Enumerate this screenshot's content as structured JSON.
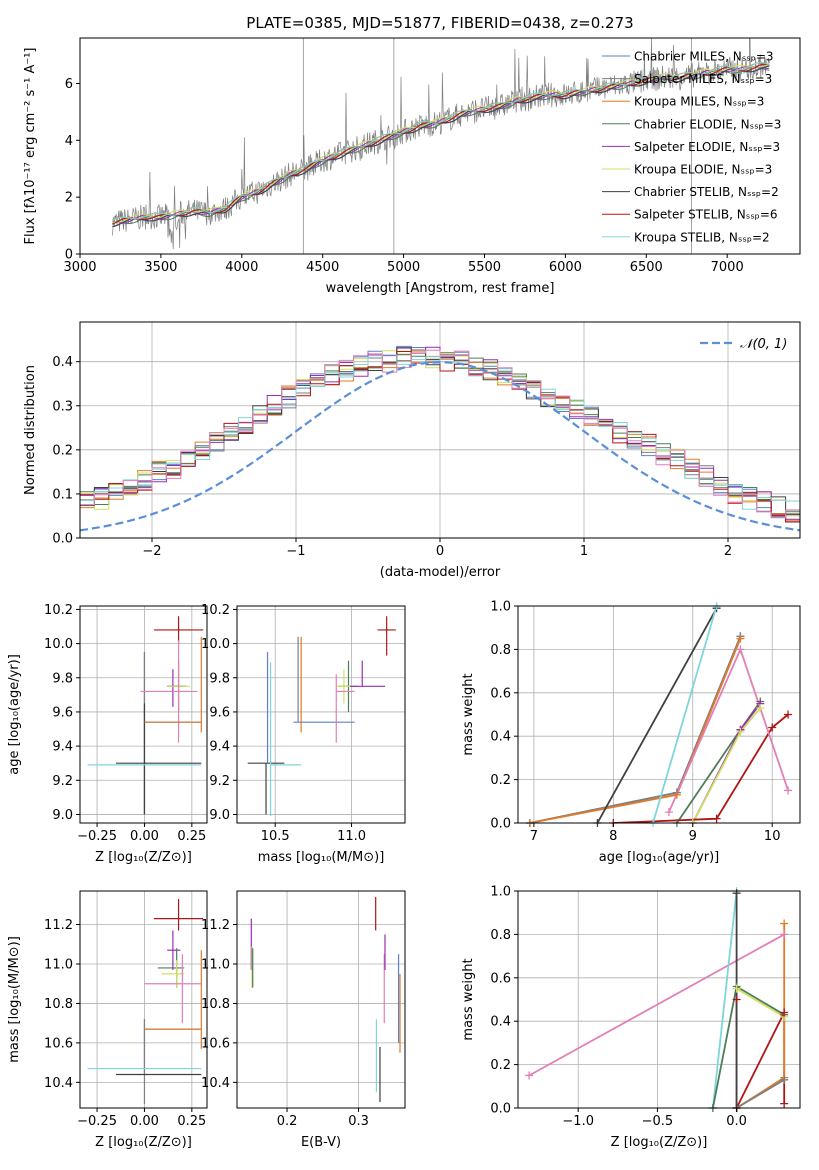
{
  "figure_title": "PLATE=0385, MJD=51877, FIBERID=0438, z=0.273",
  "colors": {
    "cm": "#5b82c9",
    "sm": "#7f7f7f",
    "km": "#e07b2a",
    "ce": "#4e7d5a",
    "se": "#9a2fb5",
    "ke": "#cfe060",
    "cs": "#404040",
    "ss": "#b01515",
    "ks": "#7ed6da",
    "normal": "#5b8fd6",
    "pink": "#e37fb7"
  },
  "chart_data": [
    {
      "id": "spectrum",
      "type": "line",
      "title": "PLATE=0385, MJD=51877, FIBERID=0438, z=0.273",
      "xlabel": "wavelength [Angstrom, rest frame]",
      "ylabel": "Flux [fλ10⁻¹⁷ erg cm⁻² s⁻¹ A⁻¹]",
      "xlim": [
        3000,
        7450
      ],
      "ylim": [
        0,
        7.6
      ],
      "xticks": [
        "3000",
        "3500",
        "4000",
        "4500",
        "5000",
        "5500",
        "6000",
        "6500",
        "7000"
      ],
      "yticks": [
        "0",
        "2",
        "4",
        "6"
      ],
      "legend_position": "top-right",
      "continuum_x": [
        3200,
        3300,
        3400,
        3500,
        3600,
        3700,
        3800,
        3900,
        4000,
        4100,
        4200,
        4300,
        4400,
        4500,
        4600,
        4700,
        4800,
        4900,
        5000,
        5100,
        5200,
        5300,
        5400,
        5500,
        5600,
        5700,
        5800,
        5900,
        6000,
        6100,
        6200,
        6300,
        6400,
        6500,
        6600,
        6700,
        6800,
        6900,
        7000,
        7100,
        7200
      ],
      "continuum_y": [
        1.1,
        1.2,
        1.3,
        1.3,
        1.4,
        1.5,
        1.45,
        1.6,
        2.0,
        2.2,
        2.5,
        2.8,
        3.0,
        3.3,
        3.5,
        3.7,
        3.9,
        4.1,
        4.3,
        4.5,
        4.6,
        4.8,
        5.0,
        5.1,
        5.2,
        5.4,
        5.5,
        5.6,
        5.6,
        5.7,
        5.8,
        5.9,
        6.0,
        6.1,
        6.2,
        6.2,
        6.3,
        6.4,
        6.5,
        6.5,
        6.6
      ],
      "series": [
        {
          "name": "Chabrier MILES, Nₛₛₚ=3",
          "color_key": "cm"
        },
        {
          "name": "Salpeter MILES, Nₛₛₚ=3",
          "color_key": "sm"
        },
        {
          "name": "Kroupa MILES, Nₛₛₚ=3",
          "color_key": "km"
        },
        {
          "name": "Chabrier ELODIE, Nₛₛₚ=3",
          "color_key": "ce"
        },
        {
          "name": "Salpeter ELODIE, Nₛₛₚ=3",
          "color_key": "se"
        },
        {
          "name": "Kroupa ELODIE, Nₛₛₚ=3",
          "color_key": "ke"
        },
        {
          "name": "Chabrier STELIB, Nₛₛₚ=2",
          "color_key": "cs"
        },
        {
          "name": "Salpeter STELIB, Nₛₛₚ=6",
          "color_key": "ss"
        },
        {
          "name": "Kroupa STELIB, Nₛₛₚ=2",
          "color_key": "ks"
        }
      ]
    },
    {
      "id": "residuals",
      "type": "histogram",
      "xlabel": "(data-model)/error",
      "ylabel": "Normed distribution",
      "xlim": [
        -2.5,
        2.5
      ],
      "ylim": [
        0,
        0.49
      ],
      "xticks": [
        "−2",
        "−1",
        "0",
        "1",
        "2"
      ],
      "yticks": [
        "0.0",
        "0.1",
        "0.2",
        "0.3",
        "0.4"
      ],
      "grid": true,
      "legend_position": "top-right",
      "normal_label": "𝒩(0, 1)",
      "bin_width": 0.1,
      "base_heights": [
        0.03,
        0.04,
        0.05,
        0.06,
        0.07,
        0.08,
        0.09,
        0.1,
        0.11,
        0.13,
        0.15,
        0.16,
        0.18,
        0.2,
        0.22,
        0.24,
        0.26,
        0.28,
        0.3,
        0.32,
        0.34,
        0.36,
        0.37,
        0.38,
        0.39,
        0.4,
        0.4,
        0.41,
        0.42,
        0.41,
        0.4,
        0.4,
        0.39,
        0.38,
        0.37,
        0.36,
        0.34,
        0.32,
        0.3,
        0.29,
        0.28,
        0.26,
        0.24,
        0.22,
        0.21,
        0.19,
        0.18,
        0.16,
        0.14,
        0.12,
        0.1,
        0.09,
        0.08,
        0.07,
        0.06,
        0.05,
        0.04,
        0.04,
        0.03,
        0.03
      ]
    },
    {
      "id": "age_vs_Z",
      "type": "errorbar",
      "xlabel": "Z [log₁₀(Z/Z⊙)]",
      "ylabel": "age  [log₁₀(age/yr)]",
      "xlim": [
        -0.34,
        0.33
      ],
      "ylim": [
        8.95,
        10.22
      ],
      "xticks": [
        "−0.25",
        "0.00",
        "0.25"
      ],
      "yticks": [
        "9.0",
        "9.2",
        "9.4",
        "9.6",
        "9.8",
        "10.0",
        "10.2"
      ],
      "grid": true,
      "points": [
        {
          "c": "cm",
          "x": 0.0,
          "xerr": [
            0.0,
            0.0
          ],
          "y": 9.3,
          "yerr": [
            0.3,
            0.65
          ]
        },
        {
          "c": "sm",
          "x": 0.0,
          "xerr": [
            0.0,
            0.0
          ],
          "y": 9.3,
          "yerr": [
            0.3,
            0.65
          ]
        },
        {
          "c": "km",
          "x": 0.3,
          "xerr": [
            0.0,
            0.0
          ],
          "y": 9.54,
          "yerr": [
            0.06,
            0.5
          ]
        },
        {
          "c": "ce",
          "x": 0.18,
          "xerr": [
            0.04,
            0.04
          ],
          "y": 9.75,
          "yerr": [
            0.15,
            0.15
          ]
        },
        {
          "c": "se",
          "x": 0.15,
          "xerr": [
            0.03,
            0.04
          ],
          "y": 9.75,
          "yerr": [
            0.12,
            0.1
          ]
        },
        {
          "c": "ke",
          "x": 0.18,
          "xerr": [
            0.06,
            0.06
          ],
          "y": 9.75,
          "yerr": [
            0.1,
            0.1
          ]
        },
        {
          "c": "cs",
          "x": 0.0,
          "xerr": [
            0.15,
            0.3
          ],
          "y": 9.3,
          "yerr": [
            0.3,
            0.35
          ]
        },
        {
          "c": "ss",
          "x": 0.18,
          "xerr": [
            0.13,
            0.13
          ],
          "y": 10.08,
          "yerr": [
            0.08,
            0.08
          ]
        },
        {
          "c": "ks",
          "x": 0.0,
          "xerr": [
            0.3,
            0.3
          ],
          "y": 9.29,
          "yerr": [
            0.0,
            0.0
          ]
        },
        {
          "c": "pink",
          "x": 0.18,
          "xerr": [
            0.2,
            0.1
          ],
          "y": 9.72,
          "yerr": [
            0.3,
            0.3
          ]
        },
        {
          "c": "cm",
          "x": 0.0,
          "xerr": [
            0.0,
            0.3
          ],
          "y": 9.54,
          "yerr": [
            0.0,
            0.0
          ]
        },
        {
          "c": "km",
          "x": 0.0,
          "xerr": [
            0.0,
            0.3
          ],
          "y": 9.54,
          "yerr": [
            0.0,
            0.0
          ]
        }
      ]
    },
    {
      "id": "age_vs_mass",
      "type": "errorbar",
      "xlabel": "mass [log₁₀(M/M⊙)]",
      "ylabel": "",
      "xlim": [
        10.25,
        11.35
      ],
      "ylim": [
        8.95,
        10.22
      ],
      "xticks": [
        "10.5",
        "11.0"
      ],
      "yticks": [
        "9.0",
        "9.2",
        "9.4",
        "9.6",
        "9.8",
        "10.0",
        "10.2"
      ],
      "grid": true,
      "points": [
        {
          "c": "cs",
          "x": 10.44,
          "xerr": [
            0.12,
            0.12
          ],
          "y": 9.3,
          "yerr": [
            0.3,
            0.0
          ]
        },
        {
          "c": "cm",
          "x": 10.45,
          "xerr": [
            0.0,
            0.0
          ],
          "y": 9.3,
          "yerr": [
            0.0,
            0.65
          ]
        },
        {
          "c": "ks",
          "x": 10.47,
          "xerr": [
            0.0,
            0.2
          ],
          "y": 9.29,
          "yerr": [
            0.3,
            0.6
          ]
        },
        {
          "c": "km",
          "x": 10.67,
          "xerr": [
            0.0,
            0.0
          ],
          "y": 9.54,
          "yerr": [
            0.06,
            0.5
          ]
        },
        {
          "c": "cm",
          "x": 10.67,
          "xerr": [
            0.05,
            0.35
          ],
          "y": 9.54,
          "yerr": [
            0.0,
            0.0
          ]
        },
        {
          "c": "sm",
          "x": 10.65,
          "xerr": [
            0.0,
            0.0
          ],
          "y": 9.54,
          "yerr": [
            0.0,
            0.5
          ]
        },
        {
          "c": "ce",
          "x": 10.98,
          "xerr": [
            0.06,
            0.06
          ],
          "y": 9.75,
          "yerr": [
            0.15,
            0.15
          ]
        },
        {
          "c": "ke",
          "x": 10.95,
          "xerr": [
            0.05,
            0.05
          ],
          "y": 9.75,
          "yerr": [
            0.1,
            0.1
          ]
        },
        {
          "c": "se",
          "x": 11.07,
          "xerr": [
            0.08,
            0.15
          ],
          "y": 9.75,
          "yerr": [
            0.0,
            0.15
          ]
        },
        {
          "c": "pink",
          "x": 10.9,
          "xerr": [
            0.0,
            0.12
          ],
          "y": 9.72,
          "yerr": [
            0.3,
            0.1
          ]
        },
        {
          "c": "ss",
          "x": 11.23,
          "xerr": [
            0.06,
            0.06
          ],
          "y": 10.08,
          "yerr": [
            0.15,
            0.08
          ]
        }
      ]
    },
    {
      "id": "massweight_vs_age",
      "type": "line",
      "xlabel": "age  [log₁₀(age/yr)]",
      "ylabel": "mass weight",
      "xlim": [
        6.8,
        10.35
      ],
      "ylim": [
        0,
        1.0
      ],
      "xticks": [
        "7",
        "8",
        "9",
        "10"
      ],
      "yticks": [
        "0.0",
        "0.2",
        "0.4",
        "0.6",
        "0.8",
        "1.0"
      ],
      "grid": true,
      "series": [
        {
          "c": "cm",
          "x": [
            6.95,
            8.8,
            9.6
          ],
          "y": [
            0.0,
            0.14,
            0.86
          ]
        },
        {
          "c": "sm",
          "x": [
            6.95,
            8.8,
            9.6
          ],
          "y": [
            0.0,
            0.14,
            0.86
          ]
        },
        {
          "c": "km",
          "x": [
            6.95,
            8.8,
            9.6
          ],
          "y": [
            0.0,
            0.13,
            0.85
          ]
        },
        {
          "c": "ce",
          "x": [
            8.8,
            9.6,
            9.85
          ],
          "y": [
            0.0,
            0.43,
            0.56
          ]
        },
        {
          "c": "se",
          "x": [
            9.0,
            9.6,
            9.85
          ],
          "y": [
            0.0,
            0.43,
            0.55
          ]
        },
        {
          "c": "ke",
          "x": [
            9.0,
            9.6,
            9.85
          ],
          "y": [
            0.0,
            0.42,
            0.53
          ]
        },
        {
          "c": "cs",
          "x": [
            7.8,
            9.3
          ],
          "y": [
            0.0,
            0.99
          ]
        },
        {
          "c": "ss",
          "x": [
            8.0,
            9.3,
            10.0,
            10.2
          ],
          "y": [
            0.0,
            0.02,
            0.44,
            0.5
          ]
        },
        {
          "c": "ks",
          "x": [
            8.5,
            9.3
          ],
          "y": [
            0.0,
            1.0
          ]
        },
        {
          "c": "pink",
          "x": [
            8.7,
            9.6,
            10.2
          ],
          "y": [
            0.05,
            0.8,
            0.15
          ]
        }
      ]
    },
    {
      "id": "mass_vs_Z",
      "type": "errorbar",
      "xlabel": "Z [log₁₀(Z/Z⊙)]",
      "ylabel": "mass [log₁₀(M/M⊙)]",
      "xlim": [
        -0.34,
        0.33
      ],
      "ylim": [
        10.27,
        11.37
      ],
      "xticks": [
        "−0.25",
        "0.00",
        "0.25"
      ],
      "yticks": [
        "10.4",
        "10.6",
        "10.8",
        "11.0",
        "11.2"
      ],
      "grid": true,
      "points": [
        {
          "c": "cm",
          "x": 0.0,
          "xerr": [
            0.0,
            0.3
          ],
          "y": 10.67,
          "yerr": [
            0.23,
            0.05
          ]
        },
        {
          "c": "km",
          "x": 0.3,
          "xerr": [
            0.3,
            0.0
          ],
          "y": 10.67,
          "yerr": [
            0.1,
            0.4
          ]
        },
        {
          "c": "sm",
          "x": 0.0,
          "xerr": [
            0.0,
            0.0
          ],
          "y": 10.44,
          "yerr": [
            0.15,
            0.28
          ]
        },
        {
          "c": "cs",
          "x": 0.0,
          "xerr": [
            0.15,
            0.3
          ],
          "y": 10.44,
          "yerr": [
            0.0,
            0.0
          ]
        },
        {
          "c": "ks",
          "x": 0.0,
          "xerr": [
            0.3,
            0.3
          ],
          "y": 10.47,
          "yerr": [
            0.0,
            0.0
          ]
        },
        {
          "c": "ce",
          "x": 0.17,
          "xerr": [
            0.1,
            0.04
          ],
          "y": 10.98,
          "yerr": [
            0.1,
            0.1
          ]
        },
        {
          "c": "ke",
          "x": 0.17,
          "xerr": [
            0.08,
            0.04
          ],
          "y": 10.95,
          "yerr": [
            0.07,
            0.07
          ]
        },
        {
          "c": "se",
          "x": 0.15,
          "xerr": [
            0.03,
            0.04
          ],
          "y": 11.07,
          "yerr": [
            0.1,
            0.1
          ]
        },
        {
          "c": "pink",
          "x": 0.2,
          "xerr": [
            0.2,
            0.1
          ],
          "y": 10.9,
          "yerr": [
            0.2,
            0.15
          ]
        },
        {
          "c": "ss",
          "x": 0.18,
          "xerr": [
            0.13,
            0.13
          ],
          "y": 11.23,
          "yerr": [
            0.06,
            0.1
          ]
        }
      ]
    },
    {
      "id": "mass_vs_EBV",
      "type": "errorbar",
      "xlabel": "E(B-V)",
      "ylabel": "",
      "xlim": [
        0.13,
        0.365
      ],
      "ylim": [
        10.27,
        11.37
      ],
      "xticks": [
        "0.2",
        "0.3"
      ],
      "yticks": [
        "10.4",
        "10.6",
        "10.8",
        "11.0",
        "11.2"
      ],
      "grid": true,
      "points": [
        {
          "c": "se",
          "x": 0.15,
          "y": 11.07,
          "yerr": [
            0.1,
            0.16
          ]
        },
        {
          "c": "ke",
          "x": 0.151,
          "y": 10.95,
          "yerr": [
            0.07,
            0.14
          ]
        },
        {
          "c": "ce",
          "x": 0.152,
          "y": 10.98,
          "yerr": [
            0.1,
            0.1
          ]
        },
        {
          "c": "ss",
          "x": 0.324,
          "y": 11.23,
          "yerr": [
            0.06,
            0.11
          ]
        },
        {
          "c": "ks",
          "x": 0.325,
          "y": 10.47,
          "yerr": [
            0.12,
            0.25
          ]
        },
        {
          "c": "cs",
          "x": 0.33,
          "y": 10.44,
          "yerr": [
            0.14,
            0.14
          ]
        },
        {
          "c": "pink",
          "x": 0.336,
          "y": 10.9,
          "yerr": [
            0.2,
            0.15
          ]
        },
        {
          "c": "se",
          "x": 0.337,
          "y": 11.07,
          "yerr": [
            0.1,
            0.08
          ]
        },
        {
          "c": "cm",
          "x": 0.356,
          "y": 10.85,
          "yerr": [
            0.25,
            0.2
          ]
        },
        {
          "c": "km",
          "x": 0.358,
          "y": 10.8,
          "yerr": [
            0.25,
            0.15
          ]
        }
      ]
    },
    {
      "id": "massweight_vs_Z",
      "type": "line",
      "xlabel": "Z [log₁₀(Z/Z⊙)]",
      "ylabel": "mass weight",
      "xlim": [
        -1.38,
        0.4
      ],
      "ylim": [
        0,
        1.0
      ],
      "xticks": [
        "−1.0",
        "−0.5",
        "0.0"
      ],
      "yticks": [
        "0.0",
        "0.2",
        "0.4",
        "0.6",
        "0.8",
        "1.0"
      ],
      "grid": true,
      "series": [
        {
          "c": "pink",
          "x": [
            -1.31,
            0.3
          ],
          "y": [
            0.15,
            0.8
          ]
        },
        {
          "c": "ks",
          "x": [
            -0.15,
            0.0
          ],
          "y": [
            0.0,
            1.0
          ]
        },
        {
          "c": "ce",
          "x": [
            -0.15,
            0.0,
            0.3
          ],
          "y": [
            0.0,
            0.56,
            0.43
          ]
        },
        {
          "c": "ke",
          "x": [
            0.0,
            0.3
          ],
          "y": [
            0.55,
            0.42
          ]
        },
        {
          "c": "ss",
          "x": [
            0.0,
            0.0,
            0.3,
            0.3
          ],
          "y": [
            0.5,
            0.0,
            0.44,
            0.02
          ]
        },
        {
          "c": "km",
          "x": [
            0.0,
            0.3,
            0.3
          ],
          "y": [
            0.0,
            0.14,
            0.85
          ]
        },
        {
          "c": "sm",
          "x": [
            0.0,
            0.3
          ],
          "y": [
            0.0,
            0.13
          ]
        },
        {
          "c": "cs",
          "x": [
            0.0,
            0.0
          ],
          "y": [
            0.0,
            0.99
          ]
        }
      ]
    }
  ]
}
